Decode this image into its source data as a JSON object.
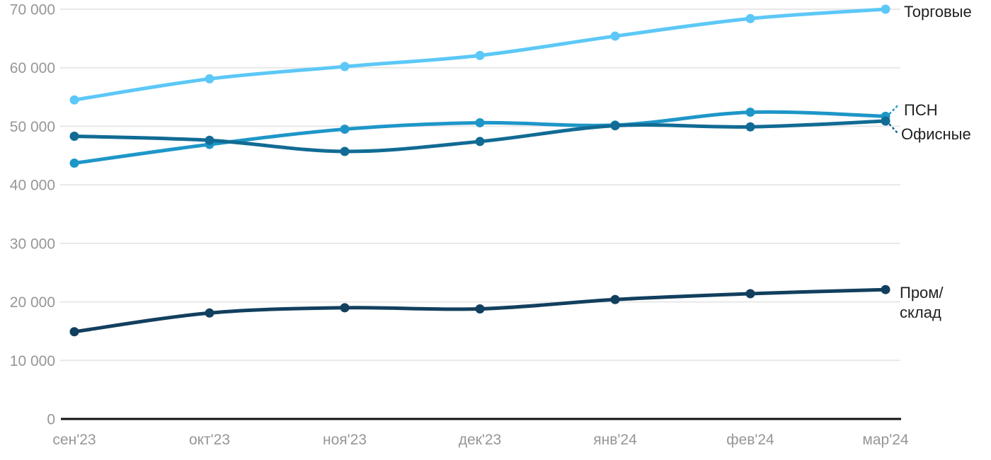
{
  "chart_data": {
    "type": "line",
    "title": "",
    "xlabel": "",
    "ylabel": "",
    "categories": [
      "сен'23",
      "окт'23",
      "ноя'23",
      "дек'23",
      "янв'24",
      "фев'24",
      "мар'24"
    ],
    "series": [
      {
        "name": "Торговые",
        "label_text": "Торговые",
        "color": "#5CC8F7",
        "values": [
          54500,
          58100,
          60200,
          62100,
          65400,
          68400,
          70000
        ]
      },
      {
        "name": "ПСН",
        "label_text": "ПСН",
        "color": "#1E96C8",
        "values": [
          43700,
          46900,
          49500,
          50600,
          50200,
          52400,
          51700
        ]
      },
      {
        "name": "Офисные",
        "label_text": "Офисные",
        "color": "#116B94",
        "values": [
          48300,
          47600,
          45700,
          47400,
          50100,
          49900,
          50900
        ]
      },
      {
        "name": "Пром/склад",
        "label_text": "Пром/\nсклад",
        "color": "#123F5E",
        "values": [
          14900,
          18100,
          19000,
          18800,
          20400,
          21400,
          22100
        ]
      }
    ],
    "y_ticks": [
      {
        "value": 0,
        "label": "0"
      },
      {
        "value": 10000,
        "label": "10 000"
      },
      {
        "value": 20000,
        "label": "20 000"
      },
      {
        "value": 30000,
        "label": "30 000"
      },
      {
        "value": 40000,
        "label": "40 000"
      },
      {
        "value": 50000,
        "label": "50 000"
      },
      {
        "value": 60000,
        "label": "60 000"
      },
      {
        "value": 70000,
        "label": "70 000"
      }
    ],
    "ylim": [
      0,
      70000
    ],
    "grid": true,
    "legend_position": "right-edge-labels",
    "colors": {
      "tick_text": "#969696",
      "grid_line": "#E8E8E8",
      "axis_line": "#111111",
      "series_label_text": "#1F1F1F",
      "background": "#FFFFFF"
    }
  }
}
